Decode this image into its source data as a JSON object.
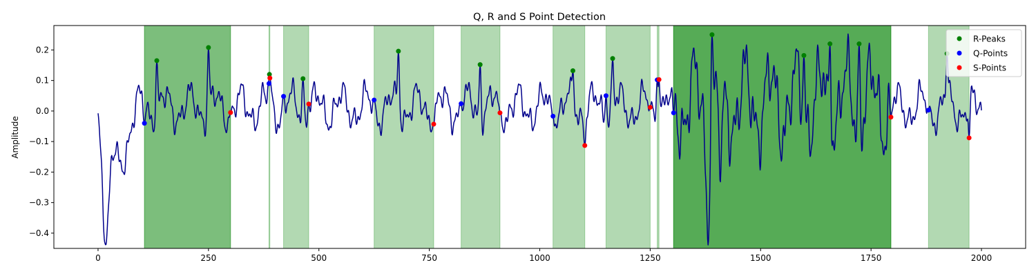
{
  "chart_data": {
    "type": "line",
    "title": "Q, R and S Point Detection",
    "xlabel": "",
    "ylabel": "Amplitude",
    "xlim": [
      -100,
      2100
    ],
    "ylim": [
      -0.45,
      0.28
    ],
    "xticks": [
      0,
      250,
      500,
      750,
      1000,
      1250,
      1500,
      1750,
      2000
    ],
    "yticks": [
      -0.4,
      -0.3,
      -0.2,
      -0.1,
      0.0,
      0.1,
      0.2
    ],
    "ytick_labels": [
      "−0.4",
      "−0.3",
      "−0.2",
      "−0.1",
      "0.0",
      "0.1",
      "0.2"
    ],
    "legend_position": "top-right",
    "signal_color": "#00008b",
    "shaded_regions": [
      {
        "x0": 105,
        "x1": 300,
        "intensity": 2
      },
      {
        "x0": 387,
        "x1": 389,
        "intensity": 1
      },
      {
        "x0": 420,
        "x1": 477,
        "intensity": 1
      },
      {
        "x0": 625,
        "x1": 760,
        "intensity": 1
      },
      {
        "x0": 822,
        "x1": 910,
        "intensity": 1
      },
      {
        "x0": 1030,
        "x1": 1102,
        "intensity": 1
      },
      {
        "x0": 1150,
        "x1": 1250,
        "intensity": 1
      },
      {
        "x0": 1266,
        "x1": 1270,
        "intensity": 1
      },
      {
        "x0": 1303,
        "x1": 1795,
        "intensity": 3
      },
      {
        "x0": 1880,
        "x1": 1972,
        "intensity": 1
      }
    ],
    "series": [
      {
        "name": "R-Peaks",
        "color": "#008000",
        "points": [
          [
            133,
            0.165
          ],
          [
            250,
            0.208
          ],
          [
            388,
            0.12
          ],
          [
            464,
            0.106
          ],
          [
            680,
            0.196
          ],
          [
            865,
            0.152
          ],
          [
            1075,
            0.132
          ],
          [
            1165,
            0.172
          ],
          [
            1390,
            0.25
          ],
          [
            1598,
            0.182
          ],
          [
            1657,
            0.22
          ],
          [
            1723,
            0.22
          ],
          [
            1922,
            0.188
          ]
        ]
      },
      {
        "name": "Q-Points",
        "color": "#0000ff",
        "points": [
          [
            105,
            -0.04
          ],
          [
            387,
            0.09
          ],
          [
            420,
            0.048
          ],
          [
            625,
            0.036
          ],
          [
            822,
            0.024
          ],
          [
            1030,
            -0.017
          ],
          [
            1150,
            0.05
          ],
          [
            1266,
            0.102
          ],
          [
            1303,
            -0.006
          ],
          [
            1880,
            0.003
          ]
        ]
      },
      {
        "name": "S-Points",
        "color": "#ff0000",
        "points": [
          [
            300,
            -0.005
          ],
          [
            389,
            0.108
          ],
          [
            477,
            0.023
          ],
          [
            760,
            -0.043
          ],
          [
            910,
            -0.006
          ],
          [
            1102,
            -0.113
          ],
          [
            1250,
            0.012
          ],
          [
            1270,
            0.103
          ],
          [
            1795,
            -0.02
          ],
          [
            1972,
            -0.088
          ]
        ]
      }
    ]
  }
}
